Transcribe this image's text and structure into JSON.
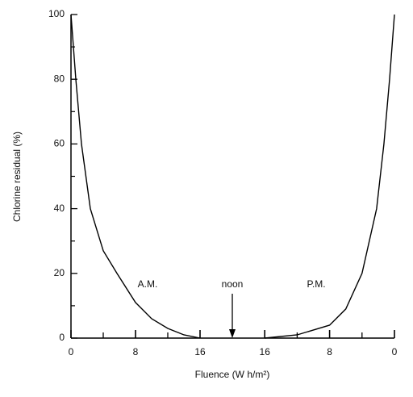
{
  "chart_data": [
    {
      "type": "line",
      "y_label": "Chlorine residual (%)",
      "x_label": "Fluence (W h/m²)",
      "annotations": [
        "A.M.",
        "noon",
        "P.M."
      ],
      "x": [
        0,
        0.6,
        1.3,
        2.4,
        4,
        5.7,
        8,
        10,
        12,
        14,
        16
      ],
      "values": [
        100,
        80,
        60,
        40,
        27,
        20,
        11,
        6,
        3,
        1,
        0
      ],
      "color": "#000000",
      "xlim": [
        0,
        20
      ],
      "xticks": [
        0,
        8,
        16
      ],
      "xminorticks": [
        4,
        12
      ],
      "ylim": [
        0,
        100
      ],
      "yticks": [
        0,
        20,
        40,
        60,
        80,
        100
      ],
      "yminorticks": [
        10,
        30,
        50,
        70,
        90
      ]
    },
    {
      "type": "line",
      "x": [
        16,
        12,
        8,
        6,
        4,
        2.2,
        1.3,
        0.6,
        0
      ],
      "values": [
        0,
        1,
        4,
        9,
        20,
        40,
        60,
        80,
        100
      ],
      "color": "#000000",
      "xlim": [
        20,
        0
      ],
      "xticks": [
        16,
        8,
        0
      ],
      "xminorticks": [
        12,
        4
      ],
      "ylim": [
        0,
        100
      ]
    }
  ]
}
